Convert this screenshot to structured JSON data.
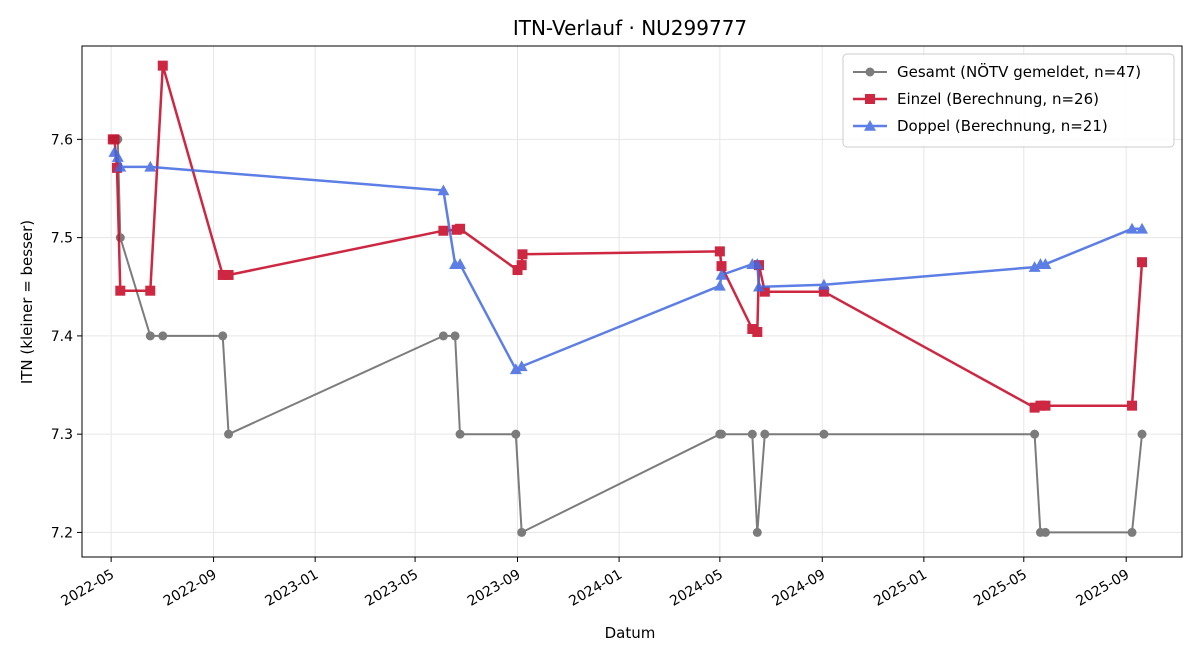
{
  "chart_data": {
    "type": "line",
    "title": "ITN-Verlauf · NU299777",
    "xlabel": "Datum",
    "ylabel": "ITN  (kleiner = besser)",
    "xlim": [
      "2022-03-27",
      "2025-11-07"
    ],
    "ylim": [
      7.175,
      7.695
    ],
    "x_ticks": [
      "2022-05-01",
      "2022-09-01",
      "2023-01-01",
      "2023-05-01",
      "2023-09-01",
      "2024-01-01",
      "2024-05-01",
      "2024-09-01",
      "2025-01-01",
      "2025-05-01",
      "2025-09-01"
    ],
    "x_tick_labels": [
      "2022-05",
      "2022-09",
      "2023-01",
      "2023-05",
      "2023-09",
      "2024-01",
      "2024-05",
      "2024-09",
      "2025-01",
      "2025-05",
      "2025-09"
    ],
    "y_ticks": [
      7.2,
      7.3,
      7.4,
      7.5,
      7.6
    ],
    "y_tick_labels": [
      "7.2",
      "7.3",
      "7.4",
      "7.5",
      "7.6"
    ],
    "grid": true,
    "legend_position": "top-right",
    "series": [
      {
        "name": "Gesamt (NÖTV gemeldet, n=47)",
        "color": "#666666",
        "marker": "circle",
        "points": [
          [
            "2022-05-03",
            7.6
          ],
          [
            "2022-05-07",
            7.6
          ],
          [
            "2022-05-09",
            7.6
          ],
          [
            "2022-05-12",
            7.5
          ],
          [
            "2022-06-17",
            7.4
          ],
          [
            "2022-07-02",
            7.4
          ],
          [
            "2022-09-12",
            7.4
          ],
          [
            "2022-09-19",
            7.3
          ],
          [
            "2023-06-04",
            7.4
          ],
          [
            "2023-06-18",
            7.4
          ],
          [
            "2023-06-24",
            7.3
          ],
          [
            "2023-08-30",
            7.3
          ],
          [
            "2023-09-06",
            7.2
          ],
          [
            "2024-05-01",
            7.3
          ],
          [
            "2024-05-03",
            7.3
          ],
          [
            "2024-06-09",
            7.3
          ],
          [
            "2024-06-15",
            7.2
          ],
          [
            "2024-06-24",
            7.3
          ],
          [
            "2024-09-03",
            7.3
          ],
          [
            "2025-05-14",
            7.3
          ],
          [
            "2025-05-21",
            7.2
          ],
          [
            "2025-05-27",
            7.2
          ],
          [
            "2025-09-08",
            7.2
          ],
          [
            "2025-09-20",
            7.3
          ]
        ]
      },
      {
        "name": "Einzel (Berechnung, n=26)",
        "color": "#c8102e",
        "marker": "square",
        "points": [
          [
            "2022-05-03",
            7.6
          ],
          [
            "2022-05-05",
            7.6
          ],
          [
            "2022-05-08",
            7.571
          ],
          [
            "2022-05-12",
            7.446
          ],
          [
            "2022-06-17",
            7.446
          ],
          [
            "2022-07-02",
            7.675
          ],
          [
            "2022-09-12",
            7.462
          ],
          [
            "2022-09-19",
            7.462
          ],
          [
            "2023-06-04",
            7.507
          ],
          [
            "2023-06-20",
            7.508
          ],
          [
            "2023-06-24",
            7.509
          ],
          [
            "2023-09-01",
            7.467
          ],
          [
            "2023-09-06",
            7.472
          ],
          [
            "2023-09-07",
            7.483
          ],
          [
            "2024-05-01",
            7.486
          ],
          [
            "2024-05-03",
            7.471
          ],
          [
            "2024-06-09",
            7.407
          ],
          [
            "2024-06-15",
            7.404
          ],
          [
            "2024-06-17",
            7.472
          ],
          [
            "2024-06-24",
            7.445
          ],
          [
            "2024-09-03",
            7.445
          ],
          [
            "2025-05-14",
            7.327
          ],
          [
            "2025-05-21",
            7.329
          ],
          [
            "2025-05-27",
            7.329
          ],
          [
            "2025-09-08",
            7.329
          ],
          [
            "2025-09-20",
            7.475
          ]
        ]
      },
      {
        "name": "Doppel (Berechnung, n=21)",
        "color": "#4169e1",
        "marker": "triangle",
        "points": [
          [
            "2022-05-05",
            7.587
          ],
          [
            "2022-05-09",
            7.582
          ],
          [
            "2022-05-12",
            7.572
          ],
          [
            "2022-06-17",
            7.572
          ],
          [
            "2023-06-04",
            7.548
          ],
          [
            "2023-06-18",
            7.473
          ],
          [
            "2023-06-24",
            7.473
          ],
          [
            "2023-08-30",
            7.366
          ],
          [
            "2023-09-06",
            7.369
          ],
          [
            "2024-05-01",
            7.451
          ],
          [
            "2024-05-03",
            7.462
          ],
          [
            "2024-06-09",
            7.473
          ],
          [
            "2024-06-15",
            7.473
          ],
          [
            "2024-06-17",
            7.45
          ],
          [
            "2024-09-03",
            7.452
          ],
          [
            "2025-05-14",
            7.47
          ],
          [
            "2025-05-21",
            7.473
          ],
          [
            "2025-05-27",
            7.473
          ],
          [
            "2025-09-08",
            7.509
          ],
          [
            "2025-09-20",
            7.509
          ]
        ]
      }
    ]
  }
}
